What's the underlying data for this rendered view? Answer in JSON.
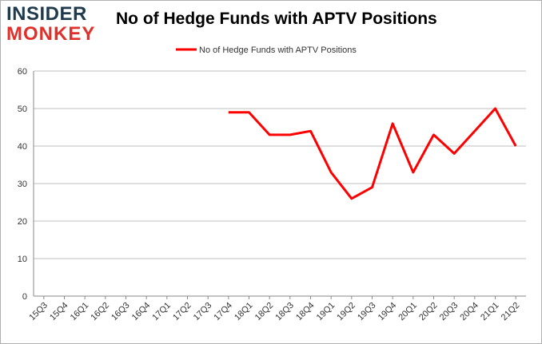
{
  "brand": {
    "line1": "INSIDER",
    "line2": "MONKEY"
  },
  "chart_data": {
    "type": "line",
    "title": "No of Hedge Funds with APTV Positions",
    "xlabel": "",
    "ylabel": "",
    "categories": [
      "15Q3",
      "15Q4",
      "16Q1",
      "16Q2",
      "16Q3",
      "16Q4",
      "17Q1",
      "17Q2",
      "17Q3",
      "17Q4",
      "18Q1",
      "18Q2",
      "18Q3",
      "18Q4",
      "19Q1",
      "19Q2",
      "19Q3",
      "19Q4",
      "20Q1",
      "20Q2",
      "20Q3",
      "20Q4",
      "21Q1",
      "21Q2"
    ],
    "series": [
      {
        "name": "No of Hedge Funds with APTV Positions",
        "color": "#ff0000",
        "values": [
          null,
          null,
          null,
          null,
          null,
          null,
          null,
          null,
          null,
          49,
          49,
          43,
          43,
          44,
          33,
          26,
          29,
          46,
          33,
          43,
          38,
          44,
          50,
          40
        ]
      }
    ],
    "ylim": [
      0,
      60
    ],
    "yticks": [
      0,
      10,
      20,
      30,
      40,
      50,
      60
    ],
    "grid": "horizontal",
    "legend": "top-center"
  }
}
